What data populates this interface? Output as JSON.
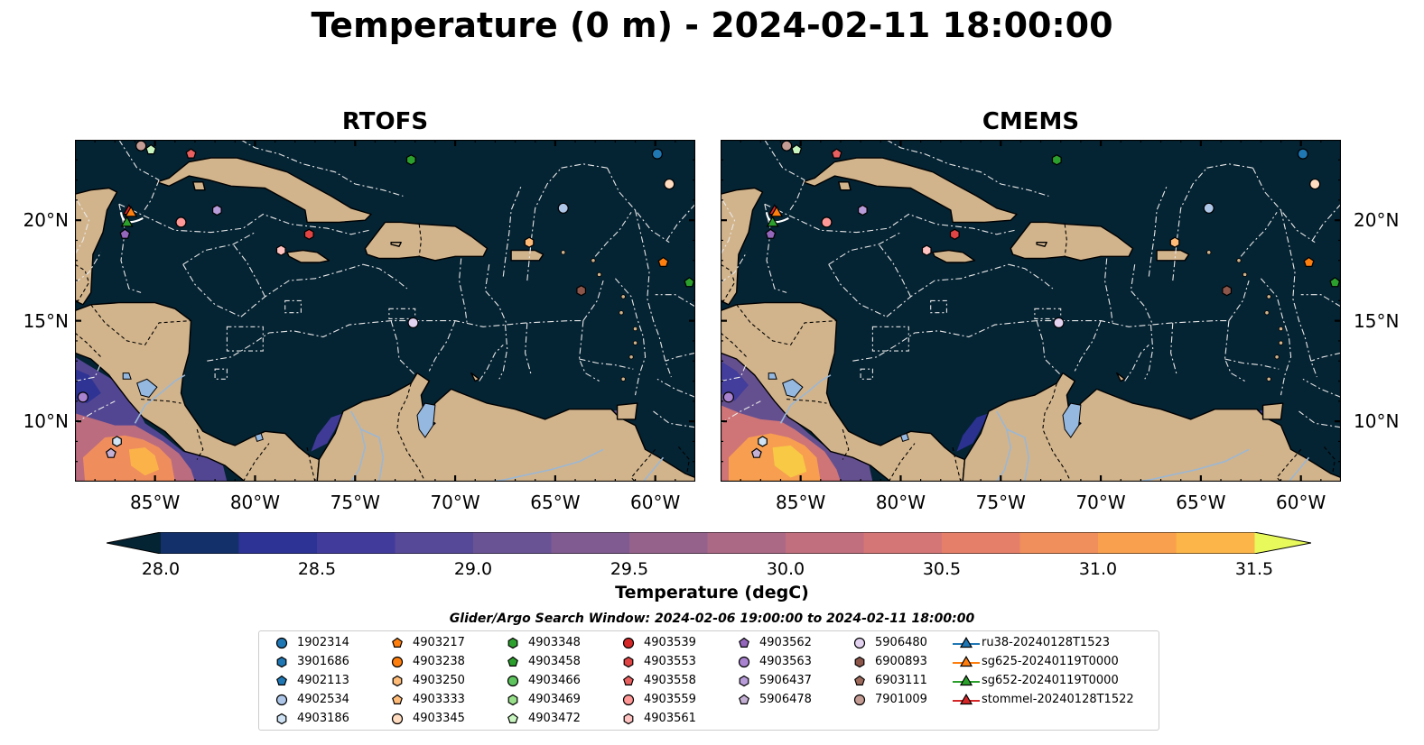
{
  "title": "Temperature (0 m) - 2024-02-11 18:00:00",
  "panels": [
    {
      "title": "RTOFS"
    },
    {
      "title": "CMEMS"
    }
  ],
  "axes": {
    "lon_ticks": [
      "85°W",
      "80°W",
      "75°W",
      "70°W",
      "65°W",
      "60°W"
    ],
    "lat_ticks": [
      "20°N",
      "15°N",
      "10°N"
    ],
    "lon_range": [
      -89,
      -58
    ],
    "lat_range": [
      7,
      24
    ]
  },
  "colorbar": {
    "label": "Temperature (degC)",
    "ticks": [
      "28.0",
      "28.5",
      "29.0",
      "29.5",
      "30.0",
      "30.5",
      "31.0",
      "31.5"
    ],
    "range": [
      28.0,
      31.5
    ],
    "extend": "both",
    "colors": [
      "#042333",
      "#13306b",
      "#2c3395",
      "#413c9c",
      "#564998",
      "#6a5395",
      "#7f5b91",
      "#95628c",
      "#ab6986",
      "#c16f7e",
      "#d57676",
      "#e57f6a",
      "#f18f5c",
      "#f9a04e",
      "#fbb548",
      "#f7cb44",
      "#eee446",
      "#e8fa5b"
    ],
    "ocean_color": "#042333",
    "land_color": "#d2b48c"
  },
  "legend": {
    "title": "Glider/Argo Search Window: 2024-02-06 19:00:00 to 2024-02-11 18:00:00",
    "items": [
      {
        "label": "1902314",
        "marker": "circle",
        "color": "#1f77b4"
      },
      {
        "label": "3901686",
        "marker": "hexagon",
        "color": "#1f77b4"
      },
      {
        "label": "4902113",
        "marker": "pentagon",
        "color": "#1f77b4"
      },
      {
        "label": "4902534",
        "marker": "circle",
        "color": "#aec7e8"
      },
      {
        "label": "4903186",
        "marker": "hexagon",
        "color": "#cfe3f5"
      },
      {
        "label": "4903217",
        "marker": "pentagon",
        "color": "#ff7f0e"
      },
      {
        "label": "4903238",
        "marker": "circle",
        "color": "#ff7f0e"
      },
      {
        "label": "4903250",
        "marker": "hexagon",
        "color": "#ffbb78"
      },
      {
        "label": "4903333",
        "marker": "pentagon",
        "color": "#ffbb78"
      },
      {
        "label": "4903345",
        "marker": "circle",
        "color": "#ffdcc0"
      },
      {
        "label": "4903348",
        "marker": "hexagon",
        "color": "#2ca02c"
      },
      {
        "label": "4903458",
        "marker": "pentagon",
        "color": "#2ca02c"
      },
      {
        "label": "4903466",
        "marker": "circle",
        "color": "#5ec45e"
      },
      {
        "label": "4903469",
        "marker": "hexagon",
        "color": "#98df8a"
      },
      {
        "label": "4903472",
        "marker": "pentagon",
        "color": "#c8f5c0"
      },
      {
        "label": "4903539",
        "marker": "circle",
        "color": "#d62728"
      },
      {
        "label": "4903553",
        "marker": "hexagon",
        "color": "#e04444"
      },
      {
        "label": "4903558",
        "marker": "pentagon",
        "color": "#e86060"
      },
      {
        "label": "4903559",
        "marker": "circle",
        "color": "#ff9896"
      },
      {
        "label": "4903561",
        "marker": "hexagon",
        "color": "#ffc4c2"
      },
      {
        "label": "4903562",
        "marker": "pentagon",
        "color": "#9467bd"
      },
      {
        "label": "4903563",
        "marker": "circle",
        "color": "#a983d0"
      },
      {
        "label": "5906437",
        "marker": "hexagon",
        "color": "#b89bd9"
      },
      {
        "label": "5906478",
        "marker": "pentagon",
        "color": "#c5b0d5"
      },
      {
        "label": "5906480",
        "marker": "circle",
        "color": "#e3d2f0"
      },
      {
        "label": "6900893",
        "marker": "hexagon",
        "color": "#8c564b"
      },
      {
        "label": "6903111",
        "marker": "pentagon",
        "color": "#9e6a5c"
      },
      {
        "label": "7901009",
        "marker": "circle",
        "color": "#c49c94"
      },
      {
        "label": "ru38-20240128T1523",
        "marker": "triangle",
        "color": "#1f77b4"
      },
      {
        "label": "sg625-20240119T0000",
        "marker": "triangle",
        "color": "#ff7f0e"
      },
      {
        "label": "sg652-20240119T0000",
        "marker": "triangle",
        "color": "#2ca02c"
      },
      {
        "label": "stommel-20240128T1522",
        "marker": "triangle",
        "color": "#d62728"
      }
    ]
  },
  "markers": [
    {
      "id": "1902314",
      "lon": -59.9,
      "lat": 23.3
    },
    {
      "id": "4903345",
      "lon": -59.3,
      "lat": 21.8
    },
    {
      "id": "4902534",
      "lon": -64.6,
      "lat": 20.6
    },
    {
      "id": "4903348",
      "lon": -72.2,
      "lat": 23.0
    },
    {
      "id": "4903558",
      "lon": -83.2,
      "lat": 23.3
    },
    {
      "id": "4903472",
      "lon": -85.2,
      "lat": 23.5
    },
    {
      "id": "7901009",
      "lon": -85.7,
      "lat": 23.7
    },
    {
      "id": "5906437",
      "lon": -81.9,
      "lat": 20.5
    },
    {
      "id": "4903559",
      "lon": -83.7,
      "lat": 19.9
    },
    {
      "id": "4903562",
      "lon": -86.5,
      "lat": 19.3
    },
    {
      "id": "4903553",
      "lon": -77.3,
      "lat": 19.3
    },
    {
      "id": "4903561",
      "lon": -78.7,
      "lat": 18.5
    },
    {
      "id": "4903250",
      "lon": -66.3,
      "lat": 18.9
    },
    {
      "id": "4903217",
      "lon": -59.6,
      "lat": 17.9
    },
    {
      "id": "4903458",
      "lon": -58.3,
      "lat": 16.9
    },
    {
      "id": "6900893",
      "lon": -63.7,
      "lat": 16.5
    },
    {
      "id": "5906480",
      "lon": -72.1,
      "lat": 14.9
    },
    {
      "id": "4903186",
      "lon": -86.9,
      "lat": 9.0
    },
    {
      "id": "5906478",
      "lon": -87.2,
      "lat": 8.4
    },
    {
      "id": "4903563",
      "lon": -88.6,
      "lat": 11.2
    },
    {
      "id": "stommel-20240128T1522",
      "lon": -86.3,
      "lat": 20.5
    },
    {
      "id": "sg625-20240119T0000",
      "lon": -86.2,
      "lat": 20.4
    },
    {
      "id": "sg652-20240119T0000",
      "lon": -86.4,
      "lat": 19.9
    }
  ]
}
